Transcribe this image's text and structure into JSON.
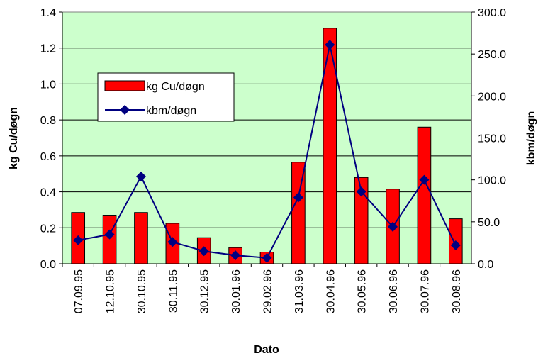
{
  "chart_data": {
    "type": "bar-line",
    "x_label": "Dato",
    "y_label": "kg Cu/døgn",
    "y2_label": "kbm/døgn",
    "categories": [
      "07.09.95",
      "12.10.95",
      "30.10.95",
      "30.11.95",
      "30.12.95",
      "30.01.96",
      "29.02.96",
      "31.03.96",
      "30.04.96",
      "30.05.96",
      "30.06.96",
      "30.07.96",
      "30.08.96"
    ],
    "series": [
      {
        "name": "kg Cu/døgn",
        "type": "bar",
        "color": "#ff0000",
        "values": [
          0.285,
          0.27,
          0.285,
          0.225,
          0.145,
          0.09,
          0.065,
          0.565,
          1.31,
          0.48,
          0.415,
          0.76,
          0.25
        ]
      },
      {
        "name": "kbm/døgn",
        "type": "line",
        "axis": "y2",
        "color": "#000080",
        "values": [
          28,
          35,
          104,
          26,
          15,
          10,
          7,
          79,
          261,
          86,
          44,
          100,
          22
        ]
      }
    ],
    "ylim": [
      0,
      1.4
    ],
    "yticks": [
      {
        "value": 0,
        "label": "0.0"
      },
      0.2,
      0.4,
      0.6,
      0.8,
      {
        "value": 1,
        "label": "1.0"
      },
      1.2,
      1.4
    ],
    "y2lim": [
      0,
      300
    ],
    "y2ticks": [
      {
        "value": 0,
        "label": "0.0"
      },
      {
        "value": 50,
        "label": "50.0"
      },
      {
        "value": 100,
        "label": "100.0"
      },
      {
        "value": 150,
        "label": "150.0"
      },
      {
        "value": 200,
        "label": "200.0"
      },
      {
        "value": 250,
        "label": "250.0"
      },
      {
        "value": 300,
        "label": "300.0"
      }
    ],
    "grid": true,
    "legend": "left",
    "plot_background": "#ccffcc"
  }
}
